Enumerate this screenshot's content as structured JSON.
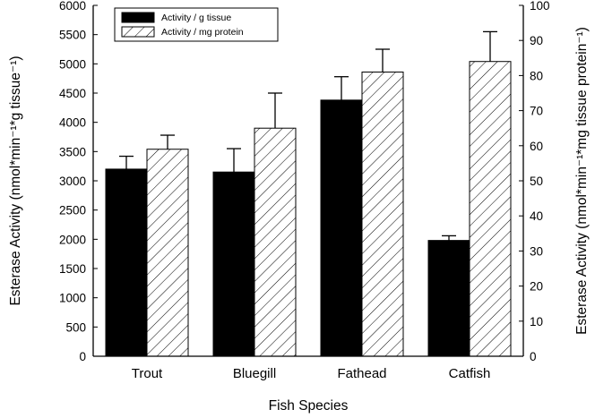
{
  "chart_data": {
    "type": "bar",
    "xlabel": "Fish Species",
    "ylabel_left": "Esterase Activity (nmol*min⁻¹*g tissue⁻¹)",
    "ylabel_right": "Esterase Activity (nmol*min⁻¹*mg tissue protein⁻¹)",
    "categories": [
      "Trout",
      "Bluegill",
      "Fathead",
      "Catfish"
    ],
    "ylim_left": [
      0,
      6000
    ],
    "ylim_right": [
      0,
      100
    ],
    "yticks_left": [
      "0",
      "500",
      "1000",
      "1500",
      "2000",
      "2500",
      "3000",
      "3500",
      "4000",
      "4500",
      "5000",
      "5500",
      "6000"
    ],
    "yticks_right": [
      "0",
      "10",
      "20",
      "30",
      "40",
      "50",
      "60",
      "70",
      "80",
      "90",
      "100"
    ],
    "legend_position": "top-left",
    "grid": false,
    "series": [
      {
        "name": "Activity / g tissue",
        "axis": "left",
        "color": "#000000",
        "pattern": "solid",
        "values": [
          3200,
          3150,
          4380,
          1980
        ],
        "errors": [
          220,
          400,
          400,
          80
        ]
      },
      {
        "name": "Activity / mg protein",
        "axis": "right",
        "color": "#000000",
        "pattern": "hatch",
        "values": [
          59,
          65,
          81,
          84
        ],
        "errors": [
          4,
          10,
          6.5,
          8.5
        ]
      }
    ]
  }
}
